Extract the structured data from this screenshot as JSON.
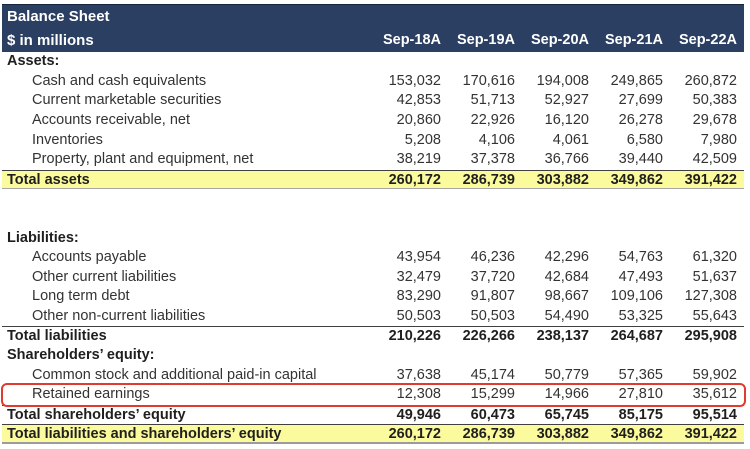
{
  "header": {
    "title": "Balance Sheet",
    "subtitle": "$ in millions",
    "columns": [
      "Sep-18A",
      "Sep-19A",
      "Sep-20A",
      "Sep-21A",
      "Sep-22A"
    ]
  },
  "rows": [
    {
      "label": "Assets:",
      "type": "section",
      "values": null
    },
    {
      "label": "Cash and cash equivalents",
      "type": "detail",
      "values": [
        "153,032",
        "170,616",
        "194,008",
        "249,865",
        "260,872"
      ]
    },
    {
      "label": "Current marketable securities",
      "type": "detail",
      "values": [
        "42,853",
        "51,713",
        "52,927",
        "27,699",
        "50,383"
      ]
    },
    {
      "label": "Accounts receivable, net",
      "type": "detail",
      "values": [
        "20,860",
        "22,926",
        "16,120",
        "26,278",
        "29,678"
      ]
    },
    {
      "label": "Inventories",
      "type": "detail",
      "values": [
        "5,208",
        "4,106",
        "4,061",
        "6,580",
        "7,980"
      ]
    },
    {
      "label": "Property, plant and equipment, net",
      "type": "detail",
      "values": [
        "38,219",
        "37,378",
        "36,766",
        "39,440",
        "42,509"
      ]
    },
    {
      "label": "Total assets",
      "type": "total_yellow",
      "values": [
        "260,172",
        "286,739",
        "303,882",
        "349,862",
        "391,422"
      ]
    },
    {
      "label": "",
      "type": "blank",
      "values": null
    },
    {
      "label": "",
      "type": "blank",
      "values": null
    },
    {
      "label": "Liabilities:",
      "type": "section",
      "values": null
    },
    {
      "label": "Accounts payable",
      "type": "detail",
      "values": [
        "43,954",
        "46,236",
        "42,296",
        "54,763",
        "61,320"
      ]
    },
    {
      "label": "Other current liabilities",
      "type": "detail",
      "values": [
        "32,479",
        "37,720",
        "42,684",
        "47,493",
        "51,637"
      ]
    },
    {
      "label": "Long term debt",
      "type": "detail",
      "values": [
        "83,290",
        "91,807",
        "98,667",
        "109,106",
        "127,308"
      ]
    },
    {
      "label": "Other non-current liabilities",
      "type": "detail",
      "values": [
        "50,503",
        "50,503",
        "54,490",
        "53,325",
        "55,643"
      ]
    },
    {
      "label": "Total liabilities",
      "type": "total",
      "values": [
        "210,226",
        "226,266",
        "238,137",
        "264,687",
        "295,908"
      ]
    },
    {
      "label": "Shareholders’ equity:",
      "type": "section",
      "values": null
    },
    {
      "label": "Common stock and additional paid-in capital",
      "type": "detail",
      "values": [
        "37,638",
        "45,174",
        "50,779",
        "57,365",
        "59,902"
      ]
    },
    {
      "label": "Retained earnings",
      "type": "detail",
      "highlight": true,
      "values": [
        "12,308",
        "15,299",
        "14,966",
        "27,810",
        "35,612"
      ]
    },
    {
      "label": "Total shareholders’ equity",
      "type": "total",
      "values": [
        "49,946",
        "60,473",
        "65,745",
        "85,175",
        "95,514"
      ]
    },
    {
      "label": "Total liabilities and shareholders’ equity",
      "type": "grand_total",
      "values": [
        "260,172",
        "286,739",
        "303,882",
        "349,862",
        "391,422"
      ]
    }
  ],
  "colors": {
    "header_bg": "#2b3f63",
    "header_text": "#ffffff",
    "highlight_row_bg": "#fbfb9d",
    "annotation_box": "#e13b30",
    "body_text": "#333333"
  }
}
